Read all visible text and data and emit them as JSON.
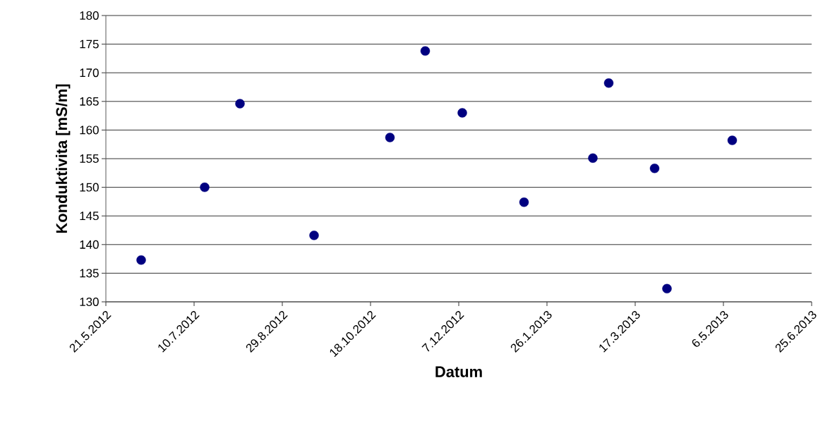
{
  "chart_data": {
    "type": "scatter",
    "xlabel": "Datum",
    "ylabel": "Konduktivita [mS/m]",
    "x": [
      "2012-06-10",
      "2012-07-16",
      "2012-08-05",
      "2012-09-16",
      "2012-10-29",
      "2012-11-18",
      "2012-12-09",
      "2013-01-13",
      "2013-02-21",
      "2013-03-02",
      "2013-03-28",
      "2013-04-04",
      "2013-05-11"
    ],
    "values": [
      137.3,
      150.0,
      164.6,
      141.6,
      158.7,
      173.8,
      163.0,
      147.4,
      155.1,
      168.2,
      153.3,
      132.3,
      158.2
    ],
    "color": "#000080",
    "marker": "circle",
    "grid": "y",
    "xlim": [
      "2012-05-21",
      "2013-06-25"
    ],
    "xticks": [
      {
        "value": "2012-05-21",
        "label": "21.5.2012"
      },
      {
        "value": "2012-07-10",
        "label": "10.7.2012"
      },
      {
        "value": "2012-08-29",
        "label": "29.8.2012"
      },
      {
        "value": "2012-10-18",
        "label": "18.10.2012"
      },
      {
        "value": "2012-12-07",
        "label": "7.12.2012"
      },
      {
        "value": "2013-01-26",
        "label": "26.1.2013"
      },
      {
        "value": "2013-03-17",
        "label": "17.3.2013"
      },
      {
        "value": "2013-05-06",
        "label": "6.5.2013"
      },
      {
        "value": "2013-06-25",
        "label": "25.6.2013"
      }
    ],
    "ylim": [
      130,
      180
    ],
    "yticks": [
      130,
      135,
      140,
      145,
      150,
      155,
      160,
      165,
      170,
      175,
      180
    ]
  }
}
